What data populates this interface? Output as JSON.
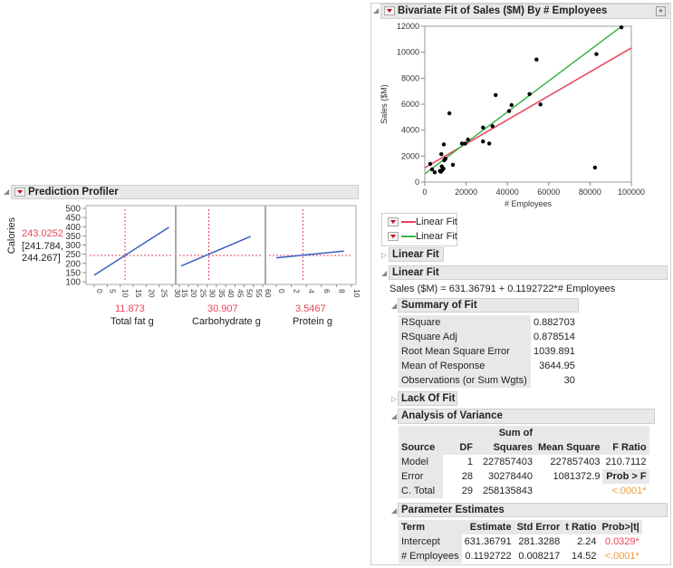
{
  "profiler": {
    "title": "Prediction Profiler",
    "response": "Calories",
    "predicted": "243.0252",
    "ci_low": "[241.784,",
    "ci_high": "244.267]",
    "y_range": [
      100,
      500
    ],
    "y_ticks": [
      "500",
      "450",
      "400",
      "350",
      "300",
      "250",
      "200",
      "150",
      "100"
    ],
    "factors": [
      {
        "label": "Total fat g",
        "current": "11.873",
        "range": [
          0,
          30
        ],
        "ticks": [
          "0",
          "5",
          "10",
          "15",
          "20",
          "25",
          "30"
        ],
        "line": [
          [
            0,
            136
          ],
          [
            28.8,
            397
          ]
        ]
      },
      {
        "label": "Carbohydrate g",
        "current": "30.907",
        "range": [
          15,
          60
        ],
        "ticks": [
          "15",
          "20",
          "25",
          "30",
          "35",
          "40",
          "45",
          "50",
          "55",
          "60"
        ],
        "line": [
          [
            16,
            186
          ],
          [
            53.5,
            347
          ]
        ]
      },
      {
        "label": "Protein g",
        "current": "3.5467",
        "range": [
          0,
          10
        ],
        "ticks": [
          "0",
          "2",
          "4",
          "6",
          "8",
          "10"
        ],
        "line": [
          [
            0,
            230
          ],
          [
            9,
            267
          ]
        ]
      }
    ],
    "colors": {
      "trace": "#3b5fc0",
      "crosshair": "#e8445a"
    }
  },
  "bivariate": {
    "title": "Bivariate Fit of Sales ($M) By # Employees",
    "legend": [
      "Linear Fit",
      "Linear Fit"
    ],
    "collapsed_fit": "Linear Fit",
    "open_fit": "Linear Fit",
    "equation": "Sales ($M) = 631.36791 + 0.1192722*# Employees",
    "summary": {
      "title": "Summary of Fit",
      "rows": [
        [
          "RSquare",
          "0.882703"
        ],
        [
          "RSquare Adj",
          "0.878514"
        ],
        [
          "Root Mean Square Error",
          "1039.891"
        ],
        [
          "Mean of Response",
          "3644.95"
        ],
        [
          "Observations (or Sum Wgts)",
          "30"
        ]
      ]
    },
    "lack_of_fit": "Lack Of Fit",
    "anova": {
      "title": "Analysis of Variance",
      "headers": [
        "Source",
        "DF",
        "Sum of",
        "Squares",
        "Mean Square",
        "F Ratio"
      ],
      "rows": [
        [
          "Model",
          "1",
          "227857403",
          "227857403",
          "210.7112"
        ],
        [
          "Error",
          "28",
          "30278440",
          "1081372.9",
          "Prob > F"
        ],
        [
          "C. Total",
          "29",
          "258135843",
          "",
          "<.0001*"
        ]
      ]
    },
    "params": {
      "title": "Parameter Estimates",
      "headers": [
        "Term",
        "Estimate",
        "Std Error",
        "t Ratio",
        "Prob>|t|"
      ],
      "rows": [
        [
          "Intercept",
          "631.36791",
          "281.3288",
          "2.24",
          "0.0329*"
        ],
        [
          "# Employees",
          "0.1192722",
          "0.008217",
          "14.52",
          "<.0001*"
        ]
      ]
    }
  },
  "chart_data": {
    "type": "scatter",
    "xlabel": "# Employees",
    "ylabel": "Sales ($M)",
    "xlim": [
      0,
      100000
    ],
    "ylim": [
      0,
      12000
    ],
    "x_ticks": [
      "0",
      "20000",
      "40000",
      "60000",
      "80000",
      "100000"
    ],
    "y_ticks": [
      "0",
      "2000",
      "4000",
      "6000",
      "8000",
      "10000",
      "12000"
    ],
    "points": [
      [
        2600,
        1400
      ],
      [
        3500,
        980
      ],
      [
        4800,
        750
      ],
      [
        7300,
        860
      ],
      [
        7800,
        800
      ],
      [
        8000,
        2150
      ],
      [
        8200,
        1210
      ],
      [
        8500,
        930
      ],
      [
        9000,
        1030
      ],
      [
        9200,
        2900
      ],
      [
        9400,
        1680
      ],
      [
        10000,
        1800
      ],
      [
        11900,
        5300
      ],
      [
        13600,
        1330
      ],
      [
        18000,
        2970
      ],
      [
        19600,
        2970
      ],
      [
        20900,
        3270
      ],
      [
        28200,
        4200
      ],
      [
        28200,
        3130
      ],
      [
        31200,
        2970
      ],
      [
        32800,
        4300
      ],
      [
        34300,
        6700
      ],
      [
        40800,
        5470
      ],
      [
        42000,
        5930
      ],
      [
        50700,
        6780
      ],
      [
        54100,
        9440
      ],
      [
        56000,
        5980
      ],
      [
        82400,
        1120
      ],
      [
        83100,
        9860
      ],
      [
        95200,
        11920
      ]
    ],
    "fits": [
      {
        "color": "#e8445a",
        "intercept": 1100,
        "slope": 0.0923
      },
      {
        "color": "#3cb54a",
        "intercept": 631.36791,
        "slope": 0.1192722
      }
    ]
  }
}
